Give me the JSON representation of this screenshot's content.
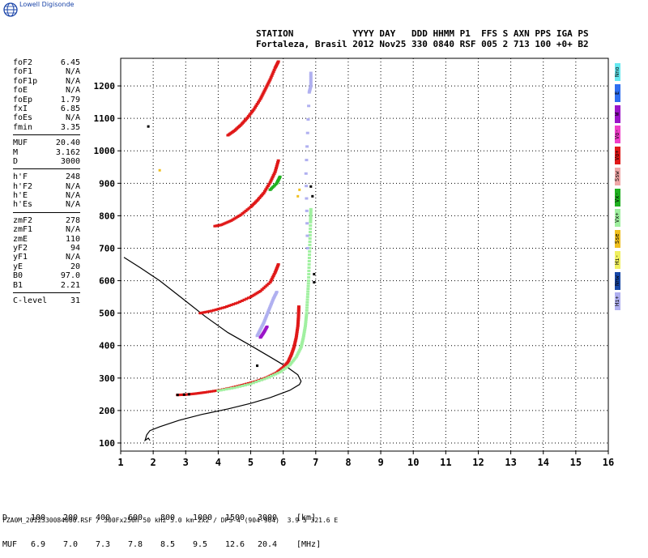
{
  "brand": {
    "logo_icon": "globe-icon",
    "name": "Lowell Digisonde"
  },
  "header": {
    "line1": "STATION           YYYY DAY   DDD HHMM P1  FFS S AXN PPS IGA PS",
    "line2": "Fortaleza, Brasil 2012 Nov25 330 0840 RSF 005 2 713 100 +0+ B2"
  },
  "params": {
    "group1": [
      {
        "label": "foF2",
        "value": "6.45"
      },
      {
        "label": "foF1",
        "value": "N/A"
      },
      {
        "label": "foF1p",
        "value": "N/A"
      },
      {
        "label": "foE",
        "value": "N/A"
      },
      {
        "label": "foEp",
        "value": "1.79"
      },
      {
        "label": "fxI",
        "value": "6.85"
      },
      {
        "label": "foEs",
        "value": "N/A"
      },
      {
        "label": "fmin",
        "value": "3.35"
      }
    ],
    "group2": [
      {
        "label": "MUF",
        "value": "20.40"
      },
      {
        "label": "M",
        "value": "3.162"
      },
      {
        "label": "D",
        "value": "3000"
      }
    ],
    "group3": [
      {
        "label": "h'F",
        "value": "248"
      },
      {
        "label": "h'F2",
        "value": "N/A"
      },
      {
        "label": "h'E",
        "value": "N/A"
      },
      {
        "label": "h'Es",
        "value": "N/A"
      }
    ],
    "group4": [
      {
        "label": "zmF2",
        "value": "278"
      },
      {
        "label": "zmF1",
        "value": "N/A"
      },
      {
        "label": "zmE",
        "value": "110"
      },
      {
        "label": "yF2",
        "value": "94"
      },
      {
        "label": "yF1",
        "value": "N/A"
      },
      {
        "label": "yE",
        "value": "20"
      },
      {
        "label": "B0",
        "value": "97.0"
      },
      {
        "label": "B1",
        "value": "2.21"
      }
    ],
    "group5": [
      {
        "label": "C-level",
        "value": "31"
      }
    ]
  },
  "legend": [
    {
      "label": "Nno",
      "color": "#66e8f0"
    },
    {
      "label": "E",
      "color": "#2e6ef0"
    },
    {
      "label": "W",
      "color": "#9b14c8"
    },
    {
      "label": "Vo-",
      "color": "#f040c8"
    },
    {
      "label": "Vo+",
      "color": "#e01818"
    },
    {
      "label": "Ssw",
      "color": "#f0a8a8"
    },
    {
      "label": "Vx-",
      "color": "#20b020"
    },
    {
      "label": "Vx+",
      "color": "#a0f0a0"
    },
    {
      "label": "Sse",
      "color": "#f0c020"
    },
    {
      "label": "Hi-",
      "color": "#f0f060"
    },
    {
      "label": "Nnw",
      "color": "#1848a8"
    },
    {
      "label": "Hi+",
      "color": "#b0b0f0"
    }
  ],
  "bottom_table": {
    "row_d": {
      "label": "D",
      "values": [
        "100",
        "200",
        "400",
        "600",
        "800",
        "1000",
        "1500",
        "3000"
      ],
      "unit": "[km]"
    },
    "row_muf": {
      "label": "MUF",
      "values": [
        "6.9",
        "7.0",
        "7.3",
        "7.8",
        "8.5",
        "9.5",
        "12.6",
        "20.4"
      ],
      "unit": "[MHz]"
    }
  },
  "footer": "FZA0M_2012330084000.RSF / 300Fx256h 50 kHz 5.0 km 2x2 / DPS-4 (904-904)  3.9 S 321.6 E",
  "chart_data": {
    "type": "scatter",
    "x_ticks": [
      "1",
      "2",
      "3",
      "4",
      "5",
      "6",
      "7",
      "8",
      "9",
      "10",
      "11",
      "12",
      "13",
      "14",
      "15",
      "16"
    ],
    "y_ticks": [
      "100",
      "200",
      "300",
      "400",
      "500",
      "600",
      "700",
      "800",
      "900",
      "1000",
      "1100",
      "1200"
    ],
    "xlim": [
      1,
      16
    ],
    "ylim": [
      75,
      1285
    ],
    "grid": true,
    "colors": {
      "vo_plus": "#e01818",
      "vx_plus": "#a0f0a0",
      "vx_minus": "#20b020",
      "hi_plus": "#b0b0f0",
      "w": "#9b14c8",
      "sse": "#f0c020",
      "black": "#000000",
      "profile": "#000000"
    },
    "traces": [
      {
        "color": "vo_plus",
        "points": [
          [
            2.75,
            248
          ],
          [
            3.0,
            249
          ],
          [
            3.3,
            252
          ],
          [
            3.6,
            256
          ],
          [
            4.0,
            262
          ],
          [
            4.4,
            270
          ],
          [
            4.8,
            280
          ],
          [
            5.2,
            291
          ],
          [
            5.5,
            302
          ],
          [
            5.8,
            317
          ],
          [
            6.0,
            333
          ],
          [
            6.15,
            350
          ],
          [
            6.25,
            372
          ],
          [
            6.33,
            395
          ],
          [
            6.4,
            425
          ],
          [
            6.45,
            460
          ],
          [
            6.47,
            490
          ],
          [
            6.48,
            520
          ]
        ]
      },
      {
        "color": "vx_plus",
        "points": [
          [
            4.0,
            261
          ],
          [
            4.5,
            270
          ],
          [
            5.0,
            282
          ],
          [
            5.5,
            300
          ],
          [
            5.9,
            318
          ],
          [
            6.2,
            340
          ],
          [
            6.4,
            365
          ],
          [
            6.55,
            395
          ],
          [
            6.62,
            425
          ],
          [
            6.68,
            460
          ],
          [
            6.72,
            500
          ],
          [
            6.75,
            550
          ],
          [
            6.78,
            600
          ],
          [
            6.8,
            660
          ],
          [
            6.82,
            720
          ],
          [
            6.84,
            780
          ],
          [
            6.85,
            820
          ]
        ]
      },
      {
        "color": "vo_plus",
        "points": [
          [
            3.45,
            500
          ],
          [
            3.8,
            507
          ],
          [
            4.2,
            518
          ],
          [
            4.6,
            532
          ],
          [
            5.0,
            550
          ],
          [
            5.3,
            568
          ],
          [
            5.6,
            595
          ],
          [
            5.75,
            625
          ],
          [
            5.85,
            650
          ]
        ]
      },
      {
        "color": "vo_plus",
        "points": [
          [
            3.9,
            768
          ],
          [
            4.1,
            772
          ],
          [
            4.4,
            785
          ],
          [
            4.7,
            803
          ],
          [
            5.0,
            827
          ],
          [
            5.2,
            847
          ],
          [
            5.4,
            870
          ],
          [
            5.6,
            903
          ],
          [
            5.75,
            935
          ],
          [
            5.85,
            970
          ]
        ]
      },
      {
        "color": "vo_plus",
        "points": [
          [
            4.3,
            1048
          ],
          [
            4.5,
            1062
          ],
          [
            4.7,
            1080
          ],
          [
            4.9,
            1102
          ],
          [
            5.1,
            1128
          ],
          [
            5.3,
            1160
          ],
          [
            5.45,
            1190
          ],
          [
            5.6,
            1220
          ],
          [
            5.75,
            1255
          ],
          [
            5.85,
            1275
          ]
        ]
      },
      {
        "color": "vx_minus",
        "points": [
          [
            5.6,
            880
          ],
          [
            5.8,
            900
          ],
          [
            5.9,
            920
          ]
        ]
      },
      {
        "color": "hi_plus",
        "points": [
          [
            5.2,
            430
          ],
          [
            5.3,
            450
          ],
          [
            5.4,
            470
          ],
          [
            5.5,
            495
          ],
          [
            5.6,
            520
          ],
          [
            5.7,
            545
          ],
          [
            5.8,
            565
          ]
        ]
      },
      {
        "color": "hi_plus",
        "points": [
          [
            6.85,
            1240
          ],
          [
            6.85,
            1200
          ],
          [
            6.8,
            1180
          ],
          [
            6.7,
            930
          ],
          [
            6.75,
            700
          ]
        ]
      },
      {
        "color": "w",
        "points": [
          [
            5.3,
            425
          ],
          [
            5.4,
            440
          ],
          [
            5.5,
            458
          ]
        ]
      },
      {
        "color": "sse",
        "points": [
          [
            6.45,
            860
          ],
          [
            6.5,
            880
          ],
          [
            2.2,
            940
          ]
        ]
      },
      {
        "color": "black",
        "points": [
          [
            2.75,
            248
          ],
          [
            2.95,
            249
          ],
          [
            3.1,
            250
          ],
          [
            1.85,
            1075
          ],
          [
            5.2,
            338
          ],
          [
            6.95,
            595
          ],
          [
            6.95,
            620
          ],
          [
            6.9,
            860
          ],
          [
            6.85,
            890
          ]
        ]
      }
    ],
    "profile": [
      [
        1.9,
        108
      ],
      [
        1.85,
        115
      ],
      [
        1.75,
        108
      ],
      [
        1.8,
        125
      ],
      [
        1.9,
        138
      ],
      [
        2.2,
        150
      ],
      [
        2.8,
        170
      ],
      [
        3.5,
        188
      ],
      [
        4.3,
        205
      ],
      [
        5.0,
        222
      ],
      [
        5.6,
        240
      ],
      [
        6.2,
        262
      ],
      [
        6.5,
        280
      ],
      [
        6.55,
        290
      ],
      [
        6.45,
        310
      ],
      [
        6.1,
        335
      ],
      [
        5.6,
        365
      ],
      [
        5.0,
        400
      ],
      [
        4.3,
        440
      ],
      [
        3.6,
        490
      ],
      [
        2.9,
        545
      ],
      [
        2.2,
        600
      ],
      [
        1.6,
        640
      ],
      [
        1.1,
        672
      ]
    ]
  }
}
